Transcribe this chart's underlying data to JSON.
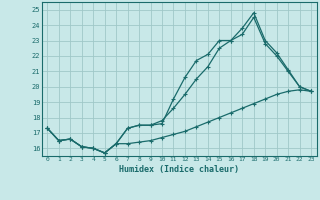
{
  "xlabel": "Humidex (Indice chaleur)",
  "bg_color": "#c8e8e8",
  "grid_color": "#a0c8c8",
  "line_color": "#1a6b6b",
  "xlim": [
    -0.5,
    23.5
  ],
  "ylim": [
    15.5,
    25.5
  ],
  "yticks": [
    16,
    17,
    18,
    19,
    20,
    21,
    22,
    23,
    24,
    25
  ],
  "xticks": [
    0,
    1,
    2,
    3,
    4,
    5,
    6,
    7,
    8,
    9,
    10,
    11,
    12,
    13,
    14,
    15,
    16,
    17,
    18,
    19,
    20,
    21,
    22,
    23
  ],
  "series1_x": [
    0,
    1,
    2,
    3,
    4,
    5,
    6,
    7,
    8,
    9,
    10,
    11,
    12,
    13,
    14,
    15,
    16,
    17,
    18,
    19,
    20,
    21,
    22,
    23
  ],
  "series1_y": [
    17.3,
    16.5,
    16.6,
    16.1,
    16.0,
    15.7,
    16.3,
    17.3,
    17.5,
    17.5,
    17.6,
    19.2,
    20.6,
    21.7,
    22.1,
    23.0,
    23.0,
    23.8,
    24.8,
    23.0,
    22.2,
    21.1,
    20.0,
    19.7
  ],
  "series2_x": [
    0,
    1,
    2,
    3,
    4,
    5,
    6,
    7,
    8,
    9,
    10,
    11,
    12,
    13,
    14,
    15,
    16,
    17,
    18,
    19,
    20,
    21,
    22,
    23
  ],
  "series2_y": [
    17.3,
    16.5,
    16.6,
    16.1,
    16.0,
    15.7,
    16.3,
    16.3,
    16.4,
    16.5,
    16.7,
    16.9,
    17.1,
    17.4,
    17.7,
    18.0,
    18.3,
    18.6,
    18.9,
    19.2,
    19.5,
    19.7,
    19.8,
    19.7
  ],
  "series3_x": [
    0,
    1,
    2,
    3,
    4,
    5,
    6,
    7,
    8,
    9,
    10,
    11,
    12,
    13,
    14,
    15,
    16,
    17,
    18,
    19,
    20,
    21,
    22,
    23
  ],
  "series3_y": [
    17.3,
    16.5,
    16.6,
    16.1,
    16.0,
    15.7,
    16.3,
    17.3,
    17.5,
    17.5,
    17.8,
    18.6,
    19.5,
    20.5,
    21.3,
    22.5,
    23.0,
    23.4,
    24.5,
    22.8,
    22.0,
    21.0,
    20.0,
    19.7
  ]
}
